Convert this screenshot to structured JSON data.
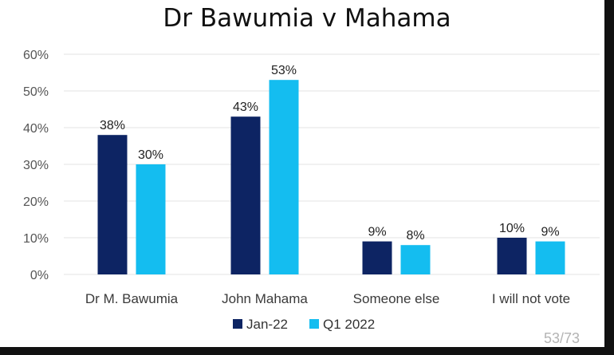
{
  "page_number": "53/73",
  "colors": {
    "jan22": "#0d2463",
    "q12022": "#14bdf0"
  },
  "chart_data": {
    "type": "bar",
    "title": "Dr Bawumia v Mahama",
    "categories": [
      "Dr M. Bawumia",
      "John Mahama",
      "Someone else",
      "I will not vote"
    ],
    "series": [
      {
        "name": "Jan-22",
        "values": [
          38,
          43,
          9,
          10
        ],
        "labels": [
          "38%",
          "43%",
          "9%",
          "10%"
        ]
      },
      {
        "name": "Q1 2022",
        "values": [
          30,
          53,
          8,
          9
        ],
        "labels": [
          "30%",
          "53%",
          "8%",
          "9%"
        ]
      }
    ],
    "yticks": [
      "0%",
      "10%",
      "20%",
      "30%",
      "40%",
      "50%",
      "60%"
    ],
    "ylim": [
      0,
      60
    ],
    "grid": true,
    "legend_position": "bottom"
  }
}
